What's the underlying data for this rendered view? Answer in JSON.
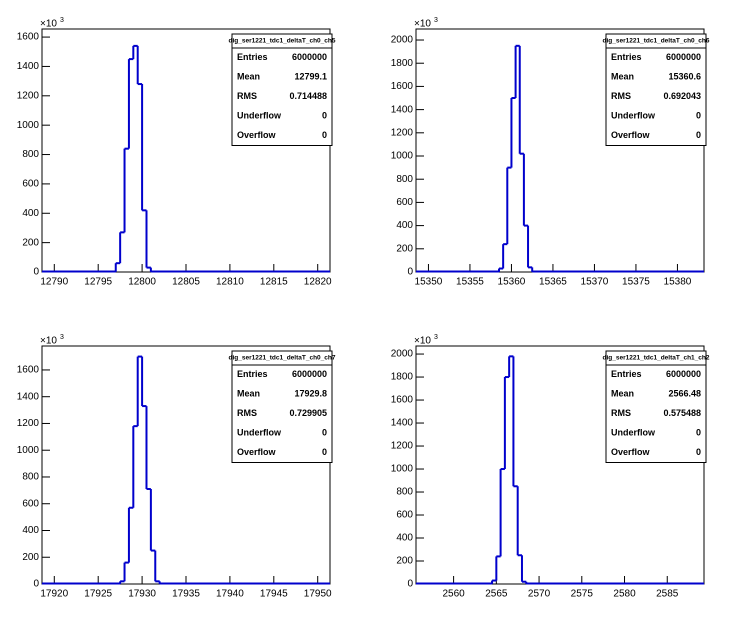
{
  "chart_data": [
    {
      "type": "histogram",
      "title": "dig_ser1221_tdc1_deltaT_ch0_ch5",
      "color": "#0000cc",
      "bins": [
        12797.0,
        12797.5,
        12798.0,
        12798.5,
        12799.0,
        12799.5,
        12800.0,
        12800.5,
        12801.0
      ],
      "values": [
        60,
        270,
        840,
        1450,
        1540,
        1280,
        420,
        30
      ],
      "xlim": [
        12788.6,
        12821.4
      ],
      "xticks": [
        12790,
        12795,
        12800,
        12805,
        12810,
        12815,
        12820
      ],
      "ylim": [
        0,
        1655
      ],
      "yticks": [
        0,
        200,
        400,
        600,
        800,
        1000,
        1200,
        1400,
        1600
      ],
      "y_multiplier": "×10",
      "y_multiplier_exponent": "3",
      "stats": [
        {
          "label": "Entries",
          "value": 6000000
        },
        {
          "label": "Mean",
          "value": 12799.1
        },
        {
          "label": "RMS",
          "value": 0.714488
        },
        {
          "label": "Underflow",
          "value": 0
        },
        {
          "label": "Overflow",
          "value": 0
        }
      ]
    },
    {
      "type": "histogram",
      "title": "dig_ser1221_tdc1_deltaT_ch0_ch6",
      "color": "#0000cc",
      "bins": [
        15358.5,
        15359.0,
        15359.5,
        15360.0,
        15360.5,
        15361.0,
        15361.5,
        15362.0,
        15362.5
      ],
      "values": [
        30,
        240,
        900,
        1500,
        1950,
        1020,
        400,
        40
      ],
      "xlim": [
        15348.5,
        15383.2
      ],
      "xticks": [
        15350,
        15355,
        15360,
        15365,
        15370,
        15375,
        15380
      ],
      "ylim": [
        0,
        2095
      ],
      "yticks": [
        0,
        200,
        400,
        600,
        800,
        1000,
        1200,
        1400,
        1600,
        1800,
        2000
      ],
      "y_multiplier": "×10",
      "y_multiplier_exponent": "3",
      "stats": [
        {
          "label": "Entries",
          "value": 6000000
        },
        {
          "label": "Mean",
          "value": 15360.6
        },
        {
          "label": "RMS",
          "value": 0.692043
        },
        {
          "label": "Underflow",
          "value": 0
        },
        {
          "label": "Overflow",
          "value": 0
        }
      ]
    },
    {
      "type": "histogram",
      "title": "dig_ser1221_tdc1_deltaT_ch0_ch7",
      "color": "#0000cc",
      "bins": [
        17927.5,
        17928.0,
        17928.5,
        17929.0,
        17929.5,
        17930.0,
        17930.5,
        17931.0,
        17931.5,
        17932.0
      ],
      "values": [
        20,
        160,
        570,
        1180,
        1700,
        1330,
        710,
        250,
        20
      ],
      "xlim": [
        17918.6,
        17951.4
      ],
      "xticks": [
        17920,
        17925,
        17930,
        17935,
        17940,
        17945,
        17950
      ],
      "ylim": [
        0,
        1779
      ],
      "yticks": [
        0,
        200,
        400,
        600,
        800,
        1000,
        1200,
        1400,
        1600
      ],
      "y_multiplier": "×10",
      "y_multiplier_exponent": "3",
      "stats": [
        {
          "label": "Entries",
          "value": 6000000
        },
        {
          "label": "Mean",
          "value": 17929.8
        },
        {
          "label": "RMS",
          "value": 0.729905
        },
        {
          "label": "Underflow",
          "value": 0
        },
        {
          "label": "Overflow",
          "value": 0
        }
      ]
    },
    {
      "type": "histogram",
      "title": "dig_ser1221_tdc1_deltaT_ch1_ch2",
      "color": "#0000cc",
      "bins": [
        2564.5,
        2565.0,
        2565.5,
        2566.0,
        2566.5,
        2567.0,
        2567.5,
        2568.0,
        2568.5
      ],
      "values": [
        30,
        240,
        1000,
        1800,
        1980,
        850,
        250,
        20
      ],
      "xlim": [
        2555.6,
        2589.3
      ],
      "xticks": [
        2560,
        2565,
        2570,
        2575,
        2580,
        2585
      ],
      "ylim": [
        0,
        2070
      ],
      "yticks": [
        0,
        200,
        400,
        600,
        800,
        1000,
        1200,
        1400,
        1600,
        1800,
        2000
      ],
      "y_multiplier": "×10",
      "y_multiplier_exponent": "3",
      "stats": [
        {
          "label": "Entries",
          "value": 6000000
        },
        {
          "label": "Mean",
          "value": 2566.48
        },
        {
          "label": "RMS",
          "value": 0.575488
        },
        {
          "label": "Underflow",
          "value": 0
        },
        {
          "label": "Overflow",
          "value": 0
        }
      ]
    }
  ]
}
